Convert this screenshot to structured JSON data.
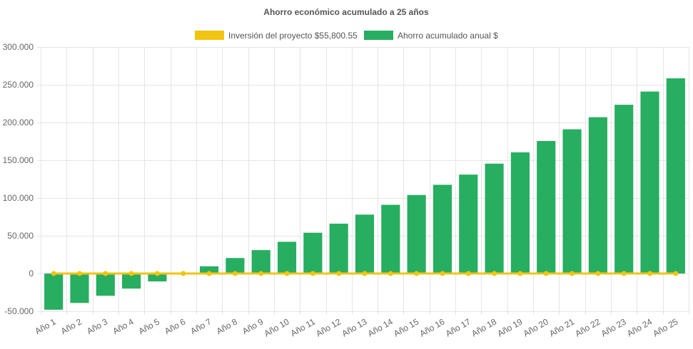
{
  "chart_data": {
    "type": "bar",
    "title": "Ahorro económico acumulado a 25 años",
    "legend_position": "top",
    "grid": true,
    "ylim": [
      -50000,
      300000
    ],
    "yticks": [
      {
        "value": 300000,
        "label": "300.000"
      },
      {
        "value": 250000,
        "label": "250.000"
      },
      {
        "value": 200000,
        "label": "200.000"
      },
      {
        "value": 150000,
        "label": "150.000"
      },
      {
        "value": 100000,
        "label": "100.000"
      },
      {
        "value": 50000,
        "label": "50.000"
      },
      {
        "value": 0,
        "label": "0"
      },
      {
        "value": -50000,
        "label": "-50.000"
      }
    ],
    "categories": [
      "Año 1",
      "Año 2",
      "Año 3",
      "Año 4",
      "Año 5",
      "Año 6",
      "Año 7",
      "Año 8",
      "Año 9",
      "Año 10",
      "Año 11",
      "Año 12",
      "Año 13",
      "Año 14",
      "Año 15",
      "Año 16",
      "Año 17",
      "Año 18",
      "Año 19",
      "Año 20",
      "Año 21",
      "Año 22",
      "Año 23",
      "Año 24",
      "Año 25"
    ],
    "series": [
      {
        "name": "Inversión del proyecto $55,800.55",
        "type": "line",
        "color": "#f1c40f",
        "values": [
          0,
          0,
          0,
          0,
          0,
          0,
          0,
          0,
          0,
          0,
          0,
          0,
          0,
          0,
          0,
          0,
          0,
          0,
          0,
          0,
          0,
          0,
          0,
          0,
          0
        ]
      },
      {
        "name": "Ahorro acumulado anual $",
        "type": "bar",
        "color": "#27ae60",
        "values": [
          -48000,
          -39000,
          -29500,
          -20000,
          -10500,
          -1000,
          9500,
          20500,
          31000,
          42000,
          54000,
          66000,
          78000,
          91000,
          104000,
          117500,
          131000,
          145500,
          160500,
          175500,
          191000,
          207000,
          223500,
          241000,
          258500
        ]
      }
    ]
  }
}
